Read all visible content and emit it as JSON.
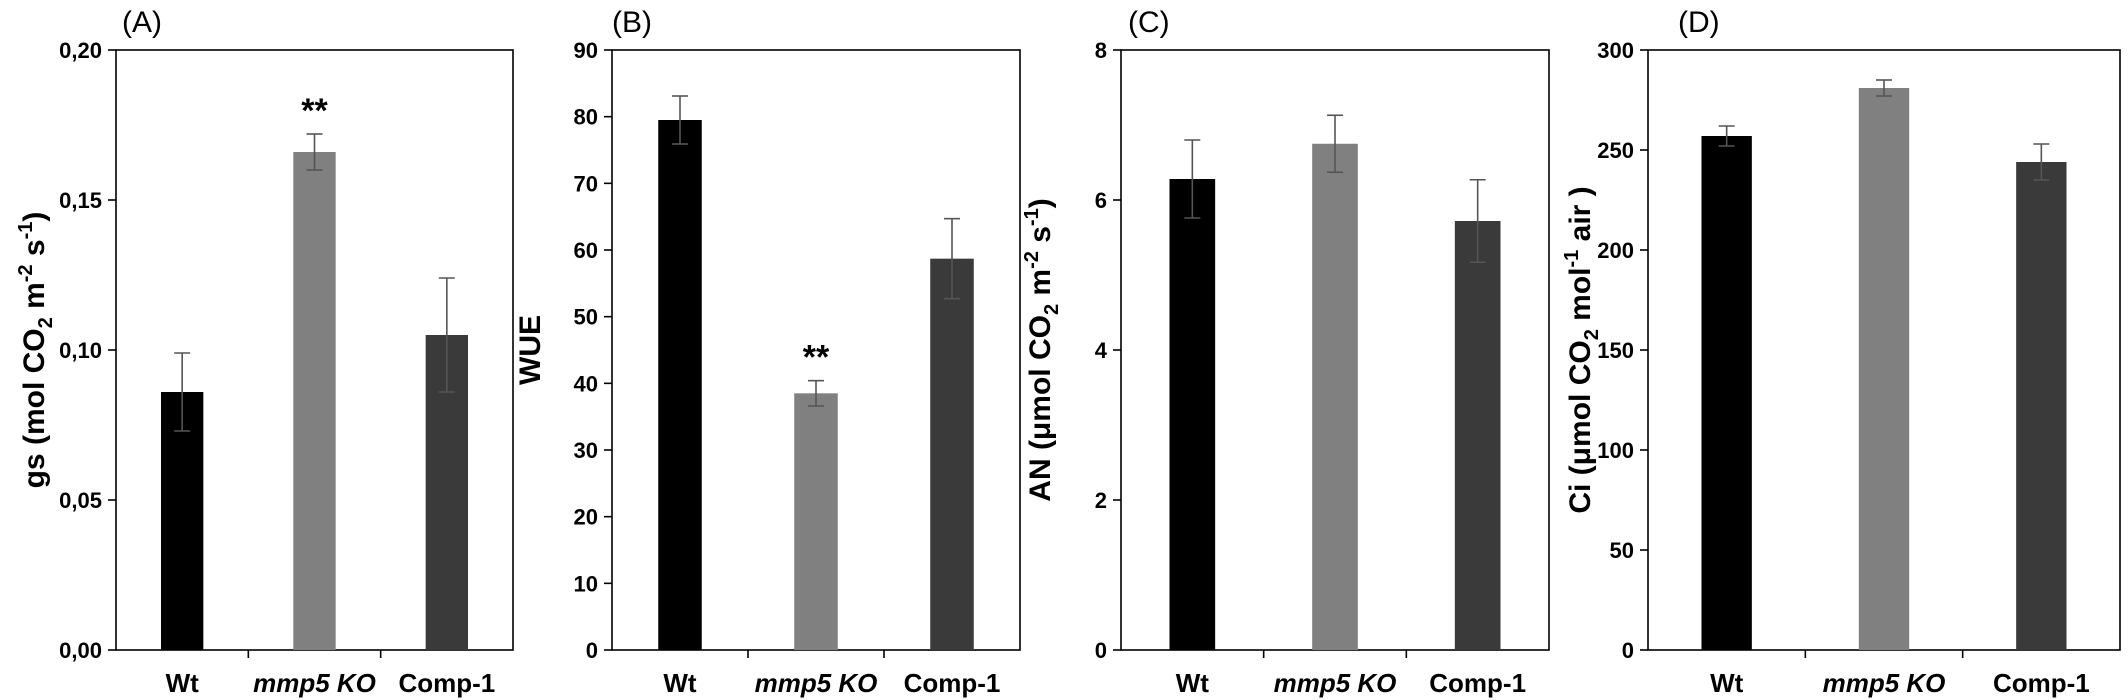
{
  "figure": {
    "width": 2128,
    "height": 700
  },
  "chart_data": [
    {
      "type": "bar",
      "panel": "(A)",
      "categories": [
        "Wt",
        "mmp5 KO",
        "Comp-1"
      ],
      "italic_categories": [
        1
      ],
      "values": [
        0.086,
        0.166,
        0.105
      ],
      "errors": [
        0.013,
        0.006,
        0.019
      ],
      "colors": [
        "#000000",
        "#808080",
        "#3a3a3a"
      ],
      "significance": [
        "",
        "**",
        ""
      ],
      "ylabel": {
        "base": "gs (mol CO",
        "sub": "2",
        "mid": " m",
        "sup1": "-2",
        "mid2": " s",
        "sup2": "-1",
        "end": ")"
      },
      "ylim": [
        0,
        0.2
      ],
      "yticks": [
        0,
        0.05,
        0.1,
        0.15,
        0.2
      ],
      "ytick_labels": [
        "0,00",
        "0,05",
        "0,10",
        "0,15",
        "0,20"
      ]
    },
    {
      "type": "bar",
      "panel": "(B)",
      "categories": [
        "Wt",
        "mmp5 KO",
        "Comp-1"
      ],
      "italic_categories": [
        1
      ],
      "values": [
        79.5,
        38.5,
        58.7
      ],
      "errors": [
        3.6,
        1.9,
        6.0
      ],
      "colors": [
        "#000000",
        "#808080",
        "#3a3a3a"
      ],
      "significance": [
        "",
        "**",
        ""
      ],
      "ylabel": {
        "base": "WUE"
      },
      "ylim": [
        0,
        90
      ],
      "yticks": [
        0,
        10,
        20,
        30,
        40,
        50,
        60,
        70,
        80,
        90
      ],
      "ytick_labels": [
        "0",
        "10",
        "20",
        "30",
        "40",
        "50",
        "60",
        "70",
        "80",
        "90"
      ]
    },
    {
      "type": "bar",
      "panel": "(C)",
      "categories": [
        "Wt",
        "mmp5 KO",
        "Comp-1"
      ],
      "italic_categories": [
        1
      ],
      "values": [
        6.28,
        6.75,
        5.72
      ],
      "errors": [
        0.52,
        0.38,
        0.55
      ],
      "colors": [
        "#000000",
        "#808080",
        "#3a3a3a"
      ],
      "significance": [
        "",
        "",
        ""
      ],
      "ylabel": {
        "base": "AN (μmol CO",
        "sub": "2",
        "mid": " m",
        "sup1": "-2",
        "mid2": " s",
        "sup2": "-1",
        "end": ")"
      },
      "ylim": [
        0,
        8
      ],
      "yticks": [
        0,
        2,
        4,
        6,
        8
      ],
      "ytick_labels": [
        "0",
        "2",
        "4",
        "6",
        "8"
      ]
    },
    {
      "type": "bar",
      "panel": "(D)",
      "categories": [
        "Wt",
        "mmp5 KO",
        "Comp-1"
      ],
      "italic_categories": [
        1
      ],
      "values": [
        257,
        281,
        244
      ],
      "errors": [
        5,
        4,
        9
      ],
      "colors": [
        "#000000",
        "#808080",
        "#3a3a3a"
      ],
      "significance": [
        "",
        "",
        ""
      ],
      "ylabel": {
        "base": "Ci (μmol CO",
        "sub": "2",
        "mid": " mol",
        "sup1": "-1",
        "end": " air )"
      },
      "ylim": [
        0,
        300
      ],
      "yticks": [
        0,
        50,
        100,
        150,
        200,
        250,
        300
      ],
      "ytick_labels": [
        "0",
        "50",
        "100",
        "150",
        "200",
        "250",
        "300"
      ]
    }
  ]
}
